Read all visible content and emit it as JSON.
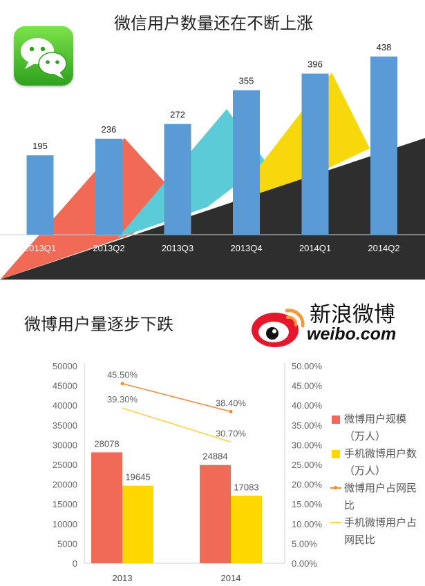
{
  "colors": {
    "wechat_bar": "#5b9bd5",
    "red_triangle": "#f06a55",
    "cyan_triangle": "#5bcbd8",
    "yellow_triangle": "#f7d80c",
    "dark_band": "#2e2e2e",
    "weibo_scale_bar": "#f06a55",
    "weibo_mobile_bar": "#ffd800",
    "weibo_rate_line": "#f08c3c",
    "weibo_mobile_rate_line": "#ffd24a",
    "weibo_logo_red": "#e6162d",
    "weibo_logo_orange": "#ff9933"
  },
  "icons": {
    "wechat": "wechat-logo-icon",
    "weibo": "weibo-eye-logo-icon"
  },
  "weibo_logo_text": {
    "cn": "新浪微博",
    "en": "weibo.com"
  },
  "chart_data": [
    {
      "type": "bar",
      "title": "微信用户数量还在不断上涨",
      "categories": [
        "2013Q1",
        "2013Q2",
        "2013Q3",
        "2013Q4",
        "2014Q1",
        "2014Q2"
      ],
      "values": [
        195,
        236,
        272,
        355,
        396,
        438
      ],
      "ylim": [
        0,
        475
      ],
      "grid": false,
      "legend": "none"
    },
    {
      "type": "bar",
      "title": "微博用户量逐步下跌",
      "categories": [
        "2013",
        "2014"
      ],
      "series": [
        {
          "name": "微博用户规模（万人）",
          "values": [
            28078,
            24884
          ],
          "axis": "left",
          "kind": "bar"
        },
        {
          "name": "手机微博用户数（万人）",
          "values": [
            19645,
            17083
          ],
          "axis": "left",
          "kind": "bar"
        },
        {
          "name": "微博用户占网民比",
          "values": [
            45.5,
            38.4
          ],
          "labels": [
            "45.50%",
            "38.40%"
          ],
          "axis": "right",
          "kind": "line"
        },
        {
          "name": "手机微博用户占网民比",
          "values": [
            39.3,
            30.7
          ],
          "labels": [
            "39.30%",
            "30.70%"
          ],
          "axis": "right",
          "kind": "line"
        }
      ],
      "ylim": [
        0,
        50000
      ],
      "y2lim": [
        0,
        50
      ],
      "yticks": [
        "0",
        "5000",
        "10000",
        "15000",
        "20000",
        "25000",
        "30000",
        "35000",
        "40000",
        "45000",
        "50000"
      ],
      "y2ticks": [
        "0.00%",
        "5.00%",
        "10.00%",
        "15.00%",
        "20.00%",
        "25.00%",
        "30.00%",
        "35.00%",
        "40.00%",
        "45.00%",
        "50.00%"
      ],
      "grid": false,
      "legend": "right"
    }
  ]
}
